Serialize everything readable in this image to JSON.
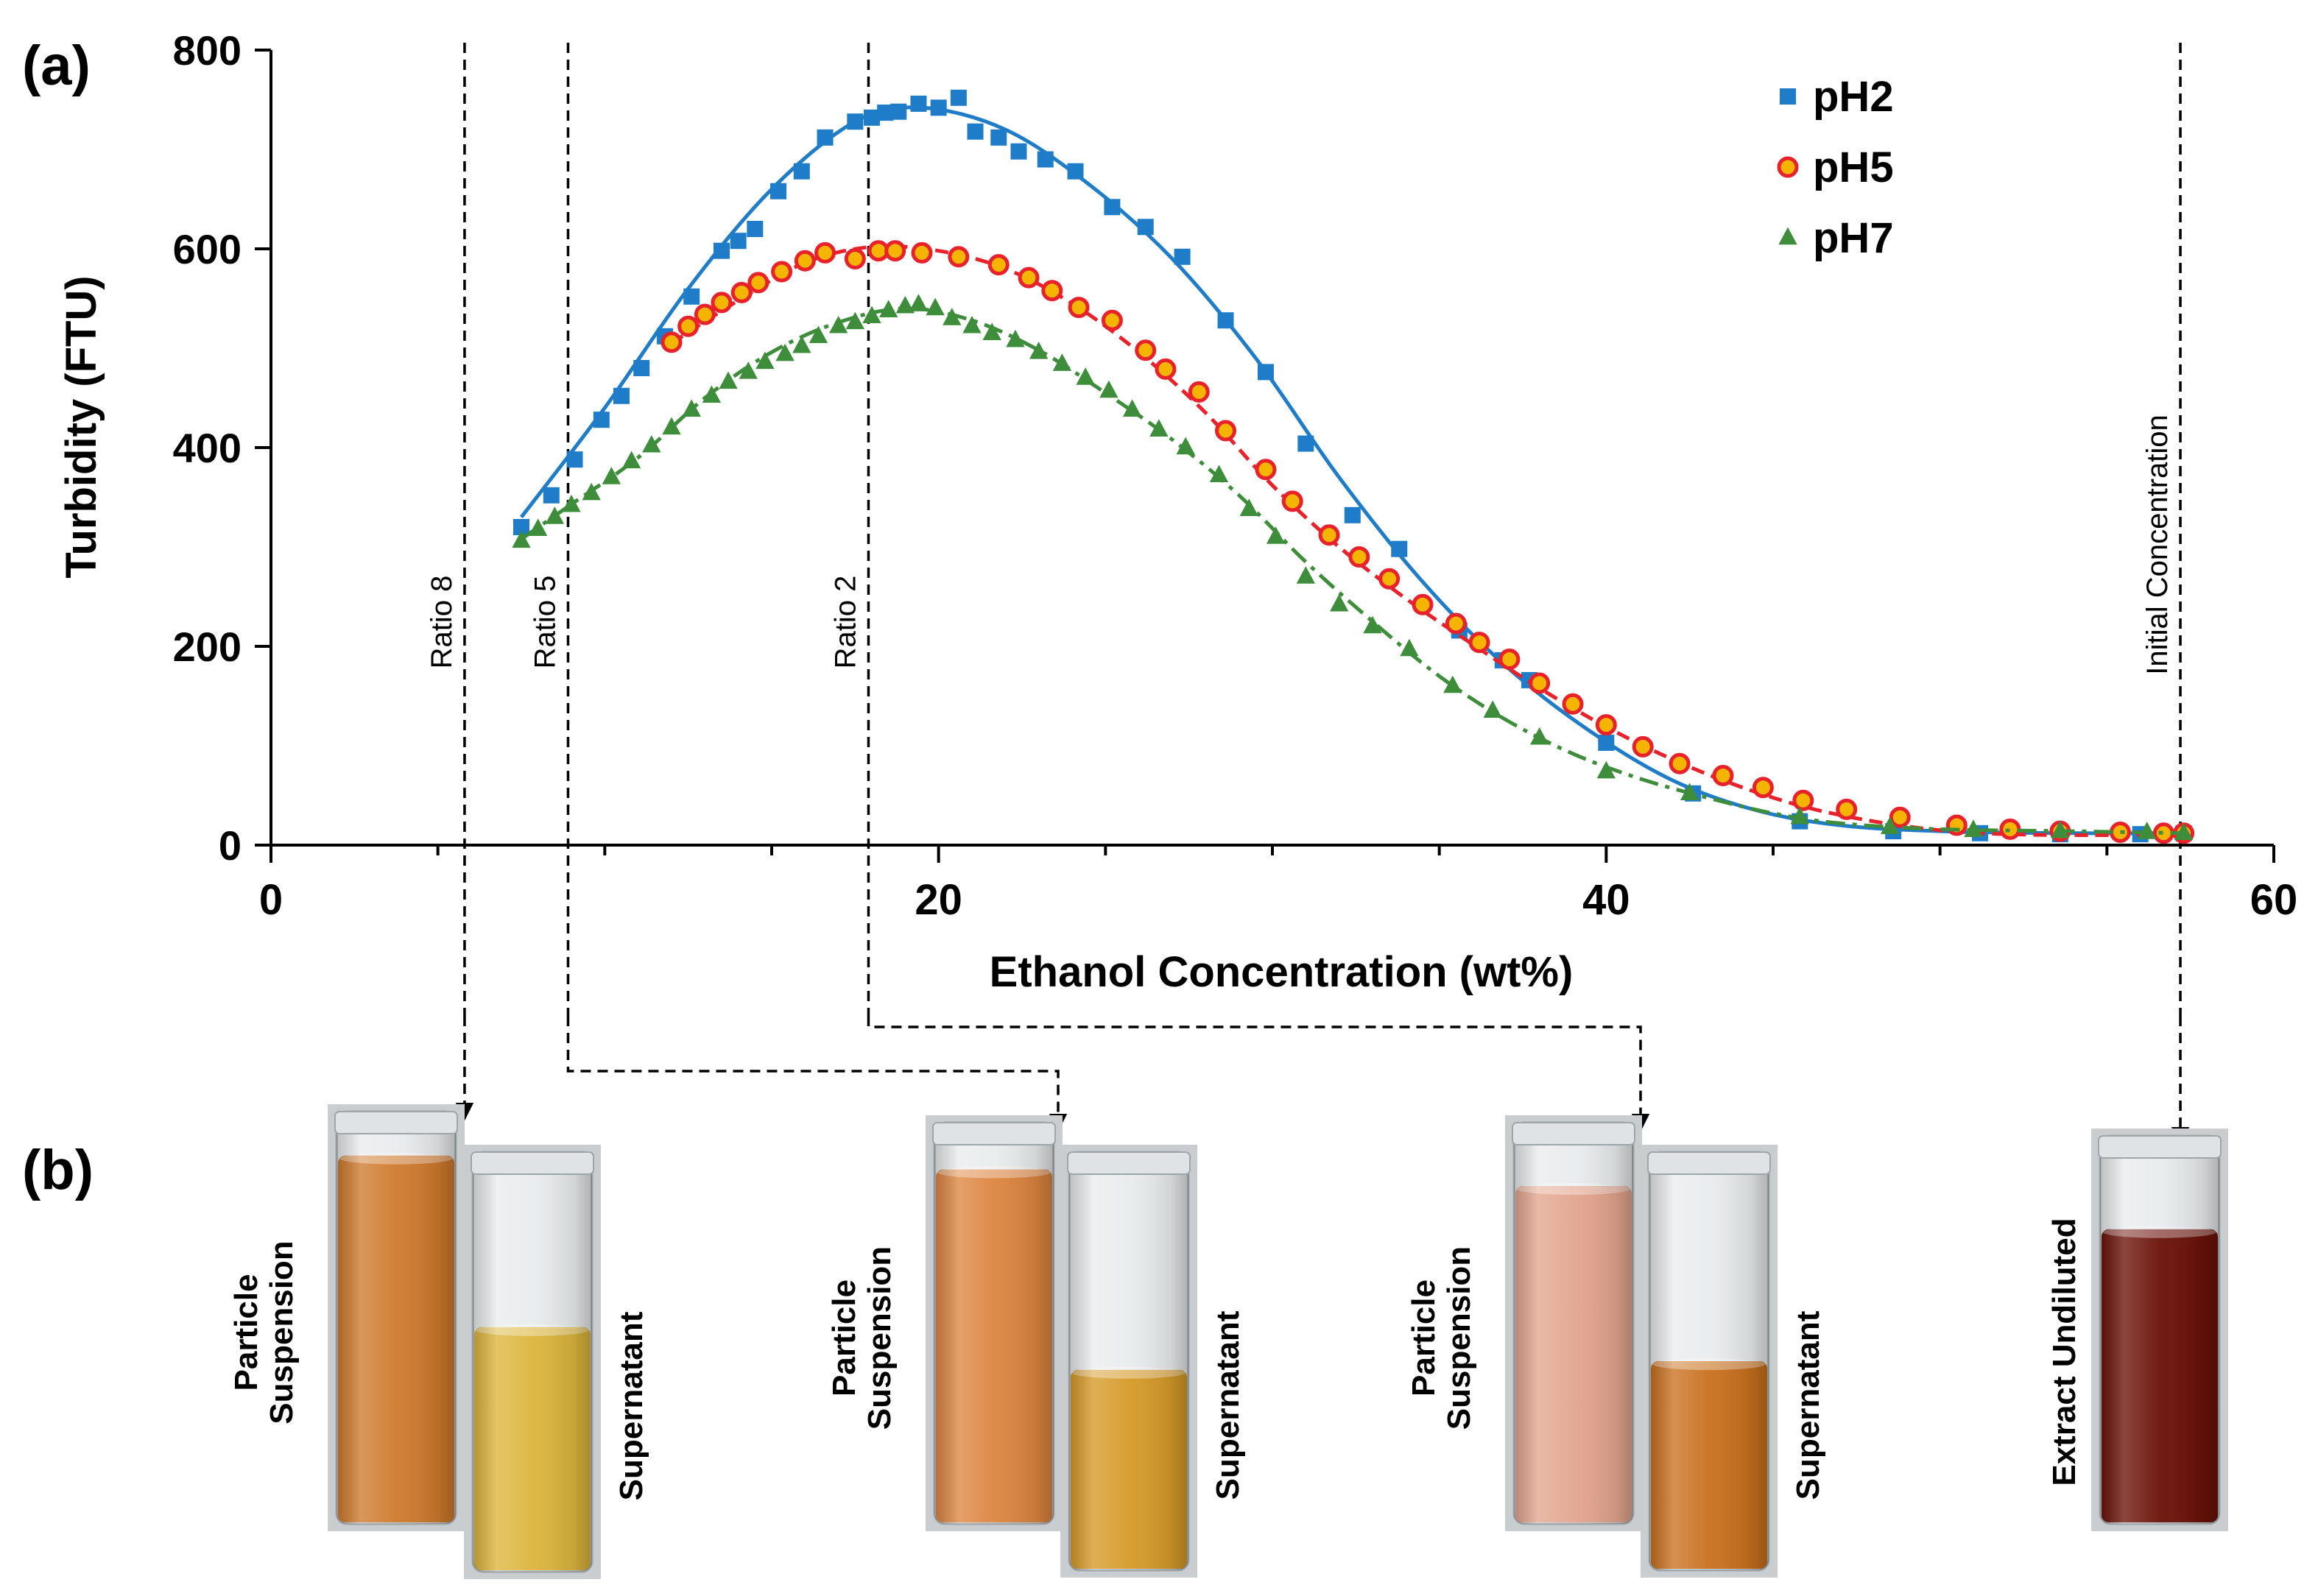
{
  "panel_labels": {
    "a": "(a)",
    "b": "(b)"
  },
  "chart_data": {
    "type": "scatter",
    "title": "",
    "xlabel": "Ethanol Concentration (wt%)",
    "ylabel": "Turbidity (FTU)",
    "xlim": [
      0,
      60
    ],
    "ylim": [
      0,
      800
    ],
    "xticks": [
      0,
      20,
      40,
      60
    ],
    "yticks": [
      0,
      200,
      400,
      600,
      800
    ],
    "grid": false,
    "legend_position": "top-right",
    "series": [
      {
        "name": "pH2",
        "marker": "square",
        "color": "#1f7cc8",
        "line_style": "solid",
        "points": [
          [
            7.5,
            320
          ],
          [
            8.4,
            352
          ],
          [
            9.1,
            388
          ],
          [
            9.9,
            428
          ],
          [
            10.5,
            452
          ],
          [
            11.1,
            480
          ],
          [
            11.8,
            512
          ],
          [
            12.6,
            552
          ],
          [
            13.5,
            598
          ],
          [
            14.0,
            608
          ],
          [
            14.5,
            620
          ],
          [
            15.2,
            658
          ],
          [
            15.9,
            678
          ],
          [
            16.6,
            712
          ],
          [
            17.5,
            728
          ],
          [
            18.0,
            732
          ],
          [
            18.4,
            737
          ],
          [
            18.8,
            738
          ],
          [
            19.4,
            746
          ],
          [
            20.0,
            742
          ],
          [
            20.6,
            752
          ],
          [
            21.1,
            718
          ],
          [
            21.8,
            712
          ],
          [
            22.4,
            698
          ],
          [
            23.2,
            690
          ],
          [
            24.1,
            678
          ],
          [
            25.2,
            642
          ],
          [
            26.2,
            622
          ],
          [
            27.3,
            592
          ],
          [
            28.6,
            528
          ],
          [
            29.8,
            476
          ],
          [
            31.0,
            404
          ],
          [
            32.4,
            332
          ],
          [
            33.8,
            298
          ],
          [
            35.6,
            216
          ],
          [
            36.9,
            186
          ],
          [
            37.7,
            166
          ],
          [
            40.0,
            103
          ],
          [
            42.6,
            52
          ],
          [
            45.8,
            24
          ],
          [
            48.6,
            14
          ],
          [
            51.2,
            12
          ],
          [
            53.6,
            11
          ],
          [
            56.0,
            11
          ],
          [
            57.3,
            12
          ]
        ],
        "fit": [
          [
            7.5,
            330
          ],
          [
            10,
            440
          ],
          [
            12.5,
            560
          ],
          [
            15,
            660
          ],
          [
            17.5,
            728
          ],
          [
            19.5,
            742
          ],
          [
            22,
            720
          ],
          [
            24.5,
            665
          ],
          [
            27,
            590
          ],
          [
            29.5,
            490
          ],
          [
            32,
            370
          ],
          [
            34.5,
            265
          ],
          [
            37,
            180
          ],
          [
            39.5,
            115
          ],
          [
            42,
            65
          ],
          [
            44.5,
            35
          ],
          [
            47,
            20
          ],
          [
            50,
            14
          ],
          [
            54,
            12
          ],
          [
            57.3,
            12
          ]
        ]
      },
      {
        "name": "pH5",
        "marker": "circle",
        "color": "#e8212b",
        "fill": "#f5b400",
        "line_style": "dashed",
        "points": [
          [
            12.0,
            506
          ],
          [
            12.5,
            522
          ],
          [
            13.0,
            534
          ],
          [
            13.5,
            546
          ],
          [
            14.1,
            556
          ],
          [
            14.6,
            566
          ],
          [
            15.3,
            577
          ],
          [
            16.0,
            588
          ],
          [
            16.6,
            596
          ],
          [
            17.5,
            590
          ],
          [
            18.2,
            598
          ],
          [
            18.7,
            598
          ],
          [
            19.5,
            596
          ],
          [
            20.6,
            592
          ],
          [
            21.8,
            584
          ],
          [
            22.7,
            571
          ],
          [
            23.4,
            558
          ],
          [
            24.2,
            541
          ],
          [
            25.2,
            528
          ],
          [
            26.2,
            498
          ],
          [
            26.8,
            479
          ],
          [
            27.8,
            456
          ],
          [
            28.6,
            417
          ],
          [
            29.8,
            378
          ],
          [
            30.6,
            346
          ],
          [
            31.7,
            312
          ],
          [
            32.6,
            290
          ],
          [
            33.5,
            268
          ],
          [
            34.5,
            242
          ],
          [
            35.5,
            223
          ],
          [
            36.2,
            204
          ],
          [
            37.1,
            187
          ],
          [
            38.0,
            163
          ],
          [
            39.0,
            142
          ],
          [
            40.0,
            121
          ],
          [
            41.1,
            99
          ],
          [
            42.2,
            82
          ],
          [
            43.5,
            70
          ],
          [
            44.7,
            58
          ],
          [
            45.9,
            45
          ],
          [
            47.2,
            36
          ],
          [
            48.8,
            28
          ],
          [
            50.5,
            20
          ],
          [
            52.1,
            16
          ],
          [
            53.6,
            14
          ],
          [
            55.4,
            13
          ],
          [
            56.7,
            12
          ],
          [
            57.3,
            12
          ]
        ],
        "fit": [
          [
            12,
            505
          ],
          [
            14,
            548
          ],
          [
            16,
            586
          ],
          [
            18,
            602
          ],
          [
            20,
            598
          ],
          [
            22,
            580
          ],
          [
            24,
            545
          ],
          [
            26,
            496
          ],
          [
            28,
            435
          ],
          [
            30,
            362
          ],
          [
            32,
            300
          ],
          [
            34,
            248
          ],
          [
            36,
            202
          ],
          [
            38,
            158
          ],
          [
            40,
            119
          ],
          [
            42,
            86
          ],
          [
            44,
            59
          ],
          [
            46,
            38
          ],
          [
            48,
            24
          ],
          [
            50,
            15
          ],
          [
            52,
            11
          ],
          [
            55,
            10
          ],
          [
            57.3,
            12
          ]
        ]
      },
      {
        "name": "pH7",
        "marker": "triangle",
        "color": "#3d8d3b",
        "line_style": "dash-dot",
        "points": [
          [
            7.5,
            306
          ],
          [
            8.0,
            318
          ],
          [
            8.5,
            330
          ],
          [
            9.0,
            342
          ],
          [
            9.6,
            354
          ],
          [
            10.2,
            370
          ],
          [
            10.8,
            386
          ],
          [
            11.4,
            402
          ],
          [
            12.0,
            420
          ],
          [
            12.6,
            438
          ],
          [
            13.2,
            452
          ],
          [
            13.7,
            466
          ],
          [
            14.3,
            476
          ],
          [
            14.8,
            486
          ],
          [
            15.4,
            494
          ],
          [
            15.9,
            502
          ],
          [
            16.4,
            512
          ],
          [
            17.0,
            522
          ],
          [
            17.5,
            526
          ],
          [
            18.0,
            532
          ],
          [
            18.5,
            538
          ],
          [
            19.0,
            542
          ],
          [
            19.4,
            544
          ],
          [
            19.9,
            540
          ],
          [
            20.4,
            530
          ],
          [
            21.0,
            522
          ],
          [
            21.6,
            515
          ],
          [
            22.3,
            508
          ],
          [
            23.0,
            496
          ],
          [
            23.7,
            484
          ],
          [
            24.4,
            470
          ],
          [
            25.1,
            457
          ],
          [
            25.8,
            438
          ],
          [
            26.6,
            418
          ],
          [
            27.4,
            400
          ],
          [
            28.4,
            372
          ],
          [
            29.3,
            338
          ],
          [
            30.1,
            310
          ],
          [
            31.0,
            270
          ],
          [
            32.0,
            242
          ],
          [
            33.0,
            220
          ],
          [
            34.1,
            197
          ],
          [
            35.4,
            160
          ],
          [
            36.6,
            135
          ],
          [
            38.0,
            108
          ],
          [
            40.0,
            74
          ],
          [
            42.5,
            52
          ],
          [
            45.8,
            28
          ],
          [
            48.5,
            18
          ],
          [
            51.0,
            15
          ],
          [
            53.6,
            14
          ],
          [
            56.2,
            13
          ],
          [
            57.3,
            12
          ]
        ],
        "fit": [
          [
            7.5,
            308
          ],
          [
            9,
            343
          ],
          [
            11,
            390
          ],
          [
            13,
            450
          ],
          [
            15,
            496
          ],
          [
            17,
            526
          ],
          [
            19,
            540
          ],
          [
            21,
            528
          ],
          [
            23,
            498
          ],
          [
            25,
            455
          ],
          [
            27,
            408
          ],
          [
            29,
            352
          ],
          [
            31,
            285
          ],
          [
            33,
            225
          ],
          [
            35,
            170
          ],
          [
            37,
            126
          ],
          [
            39,
            92
          ],
          [
            41,
            67
          ],
          [
            43,
            48
          ],
          [
            45,
            32
          ],
          [
            47,
            22
          ],
          [
            50,
            16
          ],
          [
            54,
            14
          ],
          [
            57.3,
            12
          ]
        ]
      }
    ],
    "vertical_markers": [
      {
        "x": 5.8,
        "label": "Ratio 8"
      },
      {
        "x": 8.9,
        "label": "Ratio 5"
      },
      {
        "x": 17.9,
        "label": "Ratio 2"
      },
      {
        "x": 57.2,
        "label": "Initial Concentration"
      }
    ]
  },
  "photos": [
    {
      "marker": "Ratio 8",
      "vials": [
        {
          "label": "Particle Suspension",
          "label_lines": [
            "Particle",
            "Suspension"
          ],
          "liquid_color": "#cf7a2d",
          "liquid_level": 0.88
        },
        {
          "label": "Supernatant",
          "label_lines": [
            "Supernatant"
          ],
          "liquid_color": "#dcb53d",
          "liquid_level": 0.58
        }
      ]
    },
    {
      "marker": "Ratio 5",
      "vials": [
        {
          "label": "Particle Suspension",
          "label_lines": [
            "Particle",
            "Suspension"
          ],
          "liquid_color": "#dd8540",
          "liquid_level": 0.87
        },
        {
          "label": "Supernatant",
          "label_lines": [
            "Supernatant"
          ],
          "liquid_color": "#d69a28",
          "liquid_level": 0.48
        }
      ]
    },
    {
      "marker": "Ratio 2",
      "vials": [
        {
          "label": "Particle Suspension",
          "label_lines": [
            "Particle",
            "Suspension"
          ],
          "liquid_color": "#e3a58e",
          "liquid_level": 0.83
        },
        {
          "label": "Supernatant",
          "label_lines": [
            "Supernatant"
          ],
          "liquid_color": "#c9701e",
          "liquid_level": 0.5
        }
      ]
    },
    {
      "marker": "Initial Concentration",
      "vials": [
        {
          "label": "Extract Undiluted",
          "label_lines": [
            "Extract Undiluted"
          ],
          "liquid_color": "#6a1108",
          "liquid_level": 0.75
        }
      ]
    }
  ]
}
